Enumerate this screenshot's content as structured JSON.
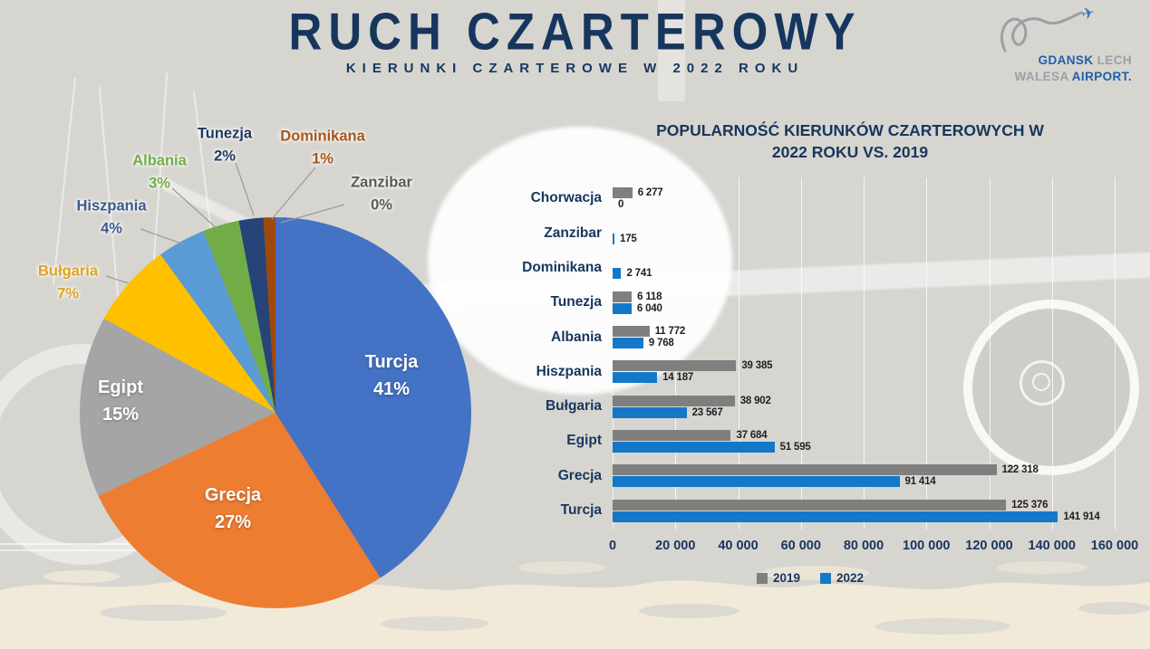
{
  "header": {
    "title": "RUCH CZARTEROWY",
    "subtitle": "KIERUNKI CZARTEROWE W 2022 ROKU"
  },
  "logo": {
    "gdansk": "GDANSK",
    "lech": "LECH",
    "walesa": "WALESA",
    "airport": "AIRPORT.",
    "airplane_glyph": "✈"
  },
  "colors": {
    "background": "#D7D5D0",
    "title_navy": "#17365D",
    "logo_blue": "#1F5FA8",
    "logo_gray": "#9AA0A6",
    "ground_beige": "#F1EAD9"
  },
  "chart_data": [
    {
      "type": "pie",
      "start_angle_deg": 0,
      "direction": "clockwise",
      "slices": [
        {
          "label": "Turcja",
          "pct": 41,
          "pct_label": "41%",
          "color": "#4472C4",
          "text_color": "#FFFFFF",
          "label_placement": "inside"
        },
        {
          "label": "Grecja",
          "pct": 27,
          "pct_label": "27%",
          "color": "#ED7D31",
          "text_color": "#FFFFFF",
          "label_placement": "inside"
        },
        {
          "label": "Egipt",
          "pct": 15,
          "pct_label": "15%",
          "color": "#A5A5A5",
          "text_color": "#FFFFFF",
          "label_placement": "inside"
        },
        {
          "label": "Bułgaria",
          "pct": 7,
          "pct_label": "7%",
          "color": "#FFC000",
          "text_color": "#DFA31F",
          "label_placement": "outside"
        },
        {
          "label": "Hiszpania",
          "pct": 4,
          "pct_label": "4%",
          "color": "#5B9BD5",
          "text_color": "#3A5A8C",
          "label_placement": "outside"
        },
        {
          "label": "Albania",
          "pct": 3,
          "pct_label": "3%",
          "color": "#70AD47",
          "text_color": "#70AD47",
          "label_placement": "outside"
        },
        {
          "label": "Tunezja",
          "pct": 2,
          "pct_label": "2%",
          "color": "#264478",
          "text_color": "#1F3864",
          "label_placement": "outside"
        },
        {
          "label": "Dominikana",
          "pct": 1,
          "pct_label": "1%",
          "color": "#A0490F",
          "text_color": "#A85519",
          "label_placement": "outside"
        },
        {
          "label": "Zanzibar",
          "pct": 0,
          "pct_label": "0%",
          "color": "#636363",
          "text_color": "#595959",
          "label_placement": "outside"
        }
      ]
    },
    {
      "type": "bar",
      "orientation": "horizontal",
      "title": "POPULARNOŚĆ KIERUNKÓW CZARTEROWYCH W 2022 ROKU VS. 2019",
      "title_lines": [
        "POPULARNOŚĆ KIERUNKÓW CZARTEROWYCH W",
        "2022 ROKU VS. 2019"
      ],
      "categories": [
        "Chorwacja",
        "Zanzibar",
        "Dominikana",
        "Tunezja",
        "Albania",
        "Hiszpania",
        "Bułgaria",
        "Egipt",
        "Grecja",
        "Turcja"
      ],
      "series": [
        {
          "name": "2019",
          "color": "#7F7F7F",
          "values": [
            6277,
            null,
            null,
            6118,
            11772,
            39385,
            38902,
            37684,
            122318,
            125376
          ],
          "labels": [
            "6 277",
            null,
            null,
            "6 118",
            "11 772",
            "39 385",
            "38 902",
            "37 684",
            "122 318",
            "125 376"
          ]
        },
        {
          "name": "2022",
          "color": "#1478C8",
          "values": [
            0,
            175,
            2741,
            6040,
            9768,
            14187,
            23567,
            51595,
            91414,
            141914
          ],
          "labels": [
            "0",
            "175",
            "2 741",
            "6 040",
            "9 768",
            "14 187",
            "23 567",
            "51 595",
            "91 414",
            "141 914"
          ]
        }
      ],
      "xlim": [
        0,
        160000
      ],
      "x_ticks": [
        "0",
        "20 000",
        "40 000",
        "60 000",
        "80 000",
        "100 000",
        "120 000",
        "140 000",
        "160 000"
      ],
      "grid": true,
      "legend_position": "bottom"
    }
  ]
}
